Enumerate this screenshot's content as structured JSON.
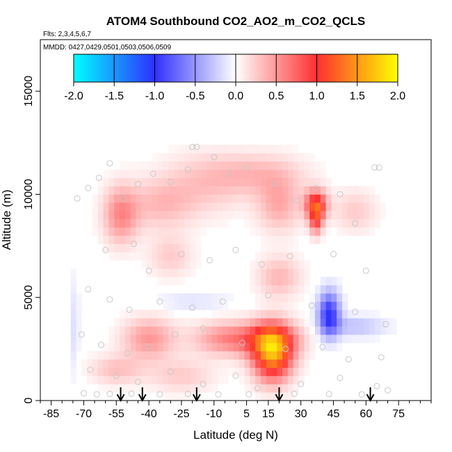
{
  "chart_data": {
    "type": "heatmap",
    "title": "ATOM4 Southbound CO2_AO2_m_CO2_QCLS",
    "flights_label": "Flts: 2,3,4,5,6,7",
    "dates_label": "MMDD: 0427,0429,0501,0503,0506,0509",
    "xlabel": "Latitude (deg N)",
    "ylabel": "Altitude (m)",
    "xlim": [
      -90,
      90
    ],
    "ylim": [
      0,
      17500
    ],
    "x_ticks": [
      -85,
      -70,
      -55,
      -40,
      -25,
      -10,
      5,
      15,
      30,
      45,
      60,
      75
    ],
    "x_tick_labels": [
      "-85",
      "-70",
      "-55",
      "-40",
      "-25",
      "-10",
      "5",
      "15",
      "30",
      "45",
      "60",
      "75"
    ],
    "y_ticks": [
      0,
      5000,
      10000,
      15000
    ],
    "y_tick_labels": [
      "0",
      "5000",
      "10000",
      "15000"
    ],
    "colorbar": {
      "range": [
        -2.0,
        2.0
      ],
      "ticks": [
        -2.0,
        -1.5,
        -1.0,
        -0.5,
        0.0,
        0.5,
        1.0,
        1.5,
        2.0
      ],
      "tick_labels": [
        "-2.0",
        "-1.5",
        "-1.0",
        "-0.5",
        "0.0",
        "0.5",
        "1.0",
        "1.5",
        "2.0"
      ],
      "colors": [
        "#00ffff",
        "#2f2fff",
        "#ffffff",
        "#ff2f2f",
        "#ffff00"
      ]
    },
    "flight_markers_lat": [
      -53,
      -43,
      -18,
      20,
      62
    ],
    "blobs": [
      {
        "lat": -53,
        "alt": 9000,
        "w": 8,
        "h": 1400,
        "v": 0.55
      },
      {
        "lat": -35,
        "alt": 9500,
        "w": 15,
        "h": 1200,
        "v": 0.3
      },
      {
        "lat": -15,
        "alt": 10500,
        "w": 20,
        "h": 1500,
        "v": 0.25
      },
      {
        "lat": 10,
        "alt": 11000,
        "w": 22,
        "h": 1000,
        "v": 0.3
      },
      {
        "lat": 20,
        "alt": 9500,
        "w": 10,
        "h": 1300,
        "v": 0.4
      },
      {
        "lat": 37,
        "alt": 9500,
        "w": 5,
        "h": 700,
        "v": 1.1
      },
      {
        "lat": 37,
        "alt": 8700,
        "w": 3,
        "h": 700,
        "v": 0.7
      },
      {
        "lat": 55,
        "alt": 9200,
        "w": 10,
        "h": 1000,
        "v": 0.25
      },
      {
        "lat": -30,
        "alt": 7000,
        "w": 10,
        "h": 1000,
        "v": 0.25
      },
      {
        "lat": 20,
        "alt": 6000,
        "w": 10,
        "h": 1000,
        "v": 0.35
      },
      {
        "lat": 17,
        "alt": 2300,
        "w": 9,
        "h": 1300,
        "v": 1.5
      },
      {
        "lat": 15,
        "alt": 3000,
        "w": 15,
        "h": 800,
        "v": 0.6
      },
      {
        "lat": -5,
        "alt": 3000,
        "w": 15,
        "h": 800,
        "v": 0.5
      },
      {
        "lat": -40,
        "alt": 3000,
        "w": 12,
        "h": 1000,
        "v": 0.5
      },
      {
        "lat": -55,
        "alt": 1500,
        "w": 12,
        "h": 700,
        "v": 0.3
      },
      {
        "lat": -25,
        "alt": 1200,
        "w": 15,
        "h": 800,
        "v": 0.25
      },
      {
        "lat": 43,
        "alt": 4200,
        "w": 5,
        "h": 1100,
        "v": -1.0
      },
      {
        "lat": 55,
        "alt": 3600,
        "w": 14,
        "h": 500,
        "v": -0.3
      },
      {
        "lat": -20,
        "alt": 4800,
        "w": 18,
        "h": 400,
        "v": -0.15
      },
      {
        "lat": -75,
        "alt": 3500,
        "w": 3,
        "h": 2500,
        "v": -0.15
      }
    ],
    "sample_points": [
      [
        -73,
        9800
      ],
      [
        -68,
        10300
      ],
      [
        -63,
        10800
      ],
      [
        -58,
        11500
      ],
      [
        -52,
        9800
      ],
      [
        -45,
        10500
      ],
      [
        -38,
        11000
      ],
      [
        -30,
        10600
      ],
      [
        -22,
        11200
      ],
      [
        -10,
        11800
      ],
      [
        -3,
        11000
      ],
      [
        5,
        11300
      ],
      [
        18,
        10500
      ],
      [
        28,
        9700
      ],
      [
        37,
        10300
      ],
      [
        48,
        10000
      ],
      [
        55,
        8600
      ],
      [
        -60,
        7300
      ],
      [
        -47,
        7600
      ],
      [
        -40,
        6300
      ],
      [
        -25,
        7100
      ],
      [
        -12,
        6800
      ],
      [
        0,
        7300
      ],
      [
        12,
        6600
      ],
      [
        25,
        7000
      ],
      [
        45,
        7100
      ],
      [
        60,
        6300
      ],
      [
        -68,
        5400
      ],
      [
        -58,
        4900
      ],
      [
        -49,
        4400
      ],
      [
        -35,
        4800
      ],
      [
        -20,
        4500
      ],
      [
        -6,
        4800
      ],
      [
        15,
        5100
      ],
      [
        35,
        4600
      ],
      [
        55,
        4300
      ],
      [
        69,
        3700
      ],
      [
        -71,
        3200
      ],
      [
        -62,
        2700
      ],
      [
        -50,
        2300
      ],
      [
        -40,
        2600
      ],
      [
        -28,
        3200
      ],
      [
        -15,
        3500
      ],
      [
        3,
        2800
      ],
      [
        23,
        2500
      ],
      [
        40,
        2600
      ],
      [
        52,
        2000
      ],
      [
        67,
        2100
      ],
      [
        -67,
        1500
      ],
      [
        -55,
        1200
      ],
      [
        -45,
        900
      ],
      [
        -30,
        1400
      ],
      [
        -15,
        800
      ],
      [
        0,
        1200
      ],
      [
        10,
        600
      ],
      [
        30,
        800
      ],
      [
        48,
        1100
      ],
      [
        65,
        700
      ],
      [
        -70,
        350
      ],
      [
        -64,
        300
      ],
      [
        -58,
        320
      ],
      [
        -48,
        330
      ],
      [
        -35,
        300
      ],
      [
        -22,
        320
      ],
      [
        -8,
        300
      ],
      [
        6,
        300
      ],
      [
        27,
        330
      ],
      [
        43,
        310
      ],
      [
        58,
        300
      ],
      [
        70,
        500
      ],
      [
        -20,
        12300
      ],
      [
        -18,
        12300
      ],
      [
        64,
        11300
      ],
      [
        66,
        11300
      ]
    ]
  }
}
